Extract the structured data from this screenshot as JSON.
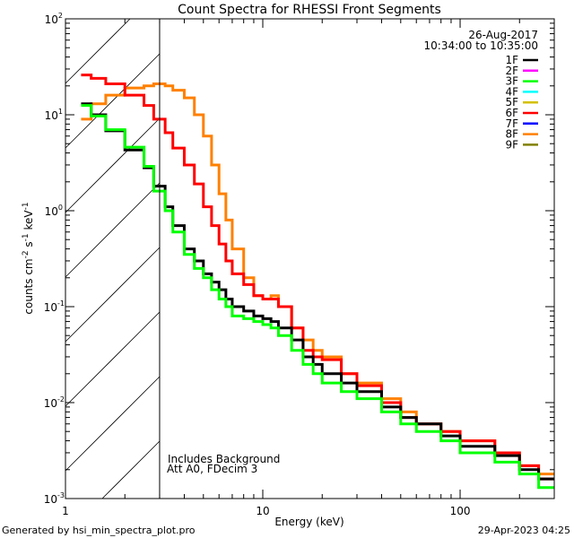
{
  "chart_data": {
    "type": "line",
    "title": "Count Spectra for RHESSI Front Segments",
    "xlabel": "Energy (keV)",
    "ylabel": "counts cm-2 s-1 keV-1",
    "xscale": "log",
    "yscale": "log",
    "xlim": [
      1,
      300
    ],
    "ylim": [
      0.001,
      100
    ],
    "xticks": [
      {
        "v": 1,
        "label": "1"
      },
      {
        "v": 10,
        "label": "10"
      },
      {
        "v": 100,
        "label": "100"
      }
    ],
    "yticks": [
      {
        "v": 100,
        "base": "10",
        "exp": "2"
      },
      {
        "v": 10,
        "base": "10",
        "exp": "1"
      },
      {
        "v": 1,
        "base": "10",
        "exp": "0"
      },
      {
        "v": 0.1,
        "base": "10",
        "exp": "-1"
      },
      {
        "v": 0.01,
        "base": "10",
        "exp": "-2"
      },
      {
        "v": 0.001,
        "base": "10",
        "exp": "-3"
      }
    ],
    "ylabel_parts": {
      "main": "counts cm",
      "e1": "-2",
      "s": " s",
      "e2": "-1",
      "k": " keV",
      "e3": "-1"
    },
    "date": "26-Aug-2017",
    "time_range": "10:34:00 to 10:35:00",
    "excluded_below_keV": 3,
    "annotations": [
      "Includes Background",
      "Att A0, FDecim 3"
    ],
    "legend_position": "top-right",
    "legend": [
      {
        "name": "1F",
        "color": "#000000"
      },
      {
        "name": "2F",
        "color": "#ff00ff"
      },
      {
        "name": "3F",
        "color": "#00ff00"
      },
      {
        "name": "4F",
        "color": "#00ffff"
      },
      {
        "name": "5F",
        "color": "#d4c000"
      },
      {
        "name": "6F",
        "color": "#ff0000"
      },
      {
        "name": "7F",
        "color": "#0000ff"
      },
      {
        "name": "8F",
        "color": "#ff8000"
      },
      {
        "name": "9F",
        "color": "#808000"
      }
    ],
    "energy_edges": [
      1.2,
      1.35,
      1.6,
      2.0,
      2.5,
      2.8,
      3.2,
      3.5,
      4.0,
      4.5,
      5,
      5.5,
      6,
      6.5,
      7,
      8,
      9,
      10,
      11,
      12,
      14,
      16,
      18,
      20,
      25,
      30,
      40,
      50,
      60,
      80,
      100,
      150,
      200,
      250,
      300
    ],
    "series": [
      {
        "name": "8F",
        "color": "#ff8000",
        "values": [
          9,
          13,
          16,
          19,
          20,
          21,
          20,
          18,
          15,
          10,
          6,
          3,
          1.5,
          0.8,
          0.4,
          0.2,
          0.13,
          0.12,
          0.13,
          0.1,
          0.06,
          0.045,
          0.035,
          0.03,
          0.02,
          0.016,
          0.011,
          0.008,
          0.006,
          0.005,
          0.004,
          0.003,
          0.0022,
          0.0018
        ]
      },
      {
        "name": "6F",
        "color": "#ff0000",
        "values": [
          26,
          24,
          21,
          16,
          12.5,
          9,
          6.5,
          4.5,
          3,
          1.9,
          1.1,
          0.7,
          0.45,
          0.3,
          0.22,
          0.17,
          0.13,
          0.12,
          0.12,
          0.1,
          0.06,
          0.035,
          0.03,
          0.028,
          0.02,
          0.015,
          0.01,
          0.007,
          0.006,
          0.005,
          0.004,
          0.003,
          0.0022,
          0.0016
        ]
      },
      {
        "name": "1F",
        "color": "#000000",
        "values": [
          13,
          10,
          6.8,
          4.3,
          2.8,
          1.8,
          1.1,
          0.7,
          0.4,
          0.3,
          0.22,
          0.18,
          0.15,
          0.12,
          0.1,
          0.09,
          0.08,
          0.075,
          0.07,
          0.06,
          0.045,
          0.03,
          0.025,
          0.02,
          0.016,
          0.013,
          0.009,
          0.007,
          0.006,
          0.0045,
          0.0035,
          0.0028,
          0.002,
          0.0016
        ]
      },
      {
        "name": "3F",
        "color": "#00ff00",
        "values": [
          12.5,
          9.7,
          7,
          4.6,
          2.9,
          1.6,
          1,
          0.6,
          0.35,
          0.25,
          0.2,
          0.15,
          0.12,
          0.1,
          0.08,
          0.075,
          0.07,
          0.065,
          0.06,
          0.05,
          0.035,
          0.025,
          0.02,
          0.016,
          0.013,
          0.011,
          0.008,
          0.006,
          0.005,
          0.004,
          0.003,
          0.0024,
          0.0018,
          0.0013
        ]
      }
    ]
  },
  "footer": {
    "generated_by": "Generated by hsi_min_spectra_plot.pro",
    "timestamp": "29-Apr-2023 04:25"
  }
}
